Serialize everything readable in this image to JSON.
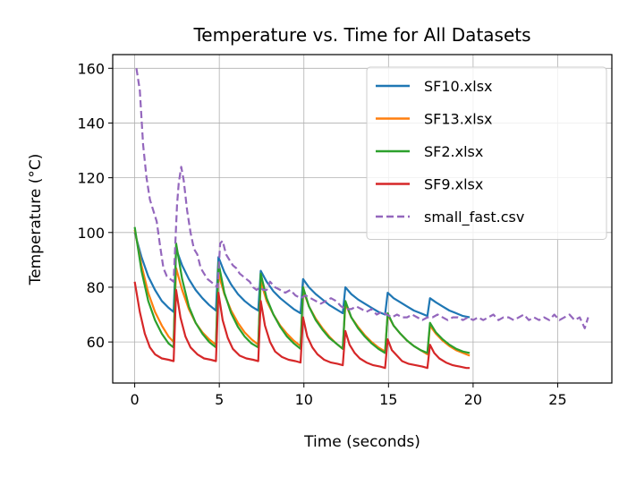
{
  "chart_data": {
    "type": "line",
    "title": "Temperature vs. Time for All Datasets",
    "xlabel": "Time (seconds)",
    "ylabel": "Temperature (°C)",
    "xlim": [
      -1.3,
      28.2
    ],
    "ylim": [
      45,
      165
    ],
    "xticks": [
      0,
      5,
      10,
      15,
      20,
      25
    ],
    "yticks": [
      60,
      80,
      100,
      120,
      140,
      160
    ],
    "grid": true,
    "legend_position": "top-right",
    "series": [
      {
        "name": "SF10.xlsx",
        "color": "#1f77b4",
        "dash": false,
        "x": [
          0,
          0.4,
          0.8,
          1.2,
          1.6,
          2.0,
          2.3,
          2.45,
          2.8,
          3.2,
          3.6,
          4.0,
          4.4,
          4.8,
          4.95,
          5.3,
          5.7,
          6.1,
          6.5,
          6.9,
          7.3,
          7.45,
          7.8,
          8.2,
          8.6,
          9.0,
          9.4,
          9.8,
          9.95,
          10.3,
          10.7,
          11.1,
          11.5,
          11.9,
          12.3,
          12.45,
          12.8,
          13.2,
          13.6,
          14.0,
          14.4,
          14.8,
          14.95,
          15.3,
          15.7,
          16.1,
          16.5,
          16.9,
          17.3,
          17.45,
          17.8,
          18.2,
          18.6,
          19.0,
          19.4,
          19.8
        ],
        "y": [
          100,
          91,
          84,
          79,
          75,
          72.5,
          71,
          94,
          88,
          83,
          79,
          76,
          73.5,
          71.5,
          91,
          85.5,
          81,
          77.5,
          75,
          73,
          71.5,
          86,
          82,
          78.5,
          76,
          74,
          72,
          70.5,
          83,
          80,
          77.5,
          75.5,
          73.5,
          72,
          70.5,
          80,
          77.5,
          75.5,
          74,
          72.5,
          71,
          70,
          78,
          76,
          74.5,
          73,
          71.5,
          70.5,
          69.5,
          76,
          74.5,
          73,
          71.5,
          70.5,
          69.5,
          69
        ]
      },
      {
        "name": "SF13.xlsx",
        "color": "#ff7f0e",
        "dash": false,
        "x": [
          0,
          0.4,
          0.8,
          1.2,
          1.6,
          2.0,
          2.3,
          2.45,
          2.8,
          3.2,
          3.6,
          4.0,
          4.4,
          4.8,
          4.95,
          5.3,
          5.7,
          6.1,
          6.5,
          6.9,
          7.3,
          7.45,
          7.8,
          8.2,
          8.6,
          9.0,
          9.4,
          9.8,
          9.95,
          10.3,
          10.7,
          11.1,
          11.5,
          11.9,
          12.3,
          12.45,
          12.8,
          13.2,
          13.6,
          14.0,
          14.4,
          14.8,
          14.95,
          15.3,
          15.7,
          16.1,
          16.5,
          16.9,
          17.3,
          17.45,
          17.8,
          18.2,
          18.6,
          19.0,
          19.4,
          19.8
        ],
        "y": [
          101,
          88,
          78,
          71,
          66,
          62,
          60,
          87,
          79,
          72,
          67,
          63.5,
          61,
          59,
          85,
          77.5,
          71.5,
          67,
          63.5,
          61,
          59,
          82,
          75,
          70,
          66,
          63,
          60.5,
          58.5,
          79,
          73,
          68.5,
          65,
          62,
          59.5,
          57.5,
          74,
          69,
          65.5,
          62.5,
          60,
          58,
          56.5,
          70,
          66,
          63,
          60.5,
          58.5,
          57,
          55.5,
          66,
          63,
          60.5,
          58.5,
          57,
          56,
          55
        ]
      },
      {
        "name": "SF2.xlsx",
        "color": "#2ca02c",
        "dash": false,
        "x": [
          0,
          0.4,
          0.8,
          1.2,
          1.6,
          2.0,
          2.3,
          2.45,
          2.8,
          3.2,
          3.6,
          4.0,
          4.4,
          4.8,
          4.95,
          5.3,
          5.7,
          6.1,
          6.5,
          6.9,
          7.3,
          7.45,
          7.8,
          8.2,
          8.6,
          9.0,
          9.4,
          9.8,
          9.95,
          10.3,
          10.7,
          11.1,
          11.5,
          11.9,
          12.3,
          12.45,
          12.8,
          13.2,
          13.6,
          14.0,
          14.4,
          14.8,
          14.95,
          15.3,
          15.7,
          16.1,
          16.5,
          16.9,
          17.3,
          17.45,
          17.8,
          18.2,
          18.6,
          19.0,
          19.4,
          19.8
        ],
        "y": [
          102,
          86,
          75,
          68,
          63,
          59.5,
          58,
          96,
          83,
          73,
          67,
          63,
          60,
          58,
          89,
          78,
          70.5,
          65.5,
          62,
          59.5,
          58,
          85,
          76,
          70,
          65.5,
          62,
          59.5,
          57.5,
          80,
          73,
          68,
          64.5,
          61.5,
          59.5,
          57.5,
          75,
          69,
          65,
          62,
          59.5,
          57.5,
          56,
          70.5,
          66,
          63,
          60.5,
          58.5,
          57,
          56,
          67,
          63.5,
          61,
          59,
          57.5,
          56.5,
          56
        ]
      },
      {
        "name": "SF9.xlsx",
        "color": "#d62728",
        "dash": false,
        "x": [
          0,
          0.3,
          0.6,
          0.9,
          1.2,
          1.6,
          2.0,
          2.3,
          2.45,
          2.7,
          3.0,
          3.3,
          3.7,
          4.1,
          4.5,
          4.8,
          4.95,
          5.2,
          5.5,
          5.8,
          6.2,
          6.6,
          7.0,
          7.3,
          7.45,
          7.7,
          8.0,
          8.3,
          8.7,
          9.1,
          9.5,
          9.8,
          9.95,
          10.2,
          10.5,
          10.8,
          11.2,
          11.6,
          12.0,
          12.3,
          12.45,
          12.7,
          13.0,
          13.3,
          13.7,
          14.1,
          14.5,
          14.8,
          14.95,
          15.2,
          15.5,
          15.8,
          16.2,
          16.6,
          17.0,
          17.3,
          17.45,
          17.7,
          18.0,
          18.4,
          18.8,
          19.2,
          19.6,
          19.8
        ],
        "y": [
          82,
          71,
          63,
          58,
          55.5,
          54,
          53.5,
          53,
          79,
          69,
          62,
          58,
          55.5,
          54,
          53.5,
          53,
          78,
          68,
          61.5,
          57.5,
          55,
          54,
          53.5,
          53,
          75,
          66,
          60,
          56.5,
          54.5,
          53.5,
          53,
          52.5,
          69,
          62,
          58,
          55.5,
          53.5,
          52.5,
          52,
          51.5,
          64,
          59,
          56,
          54,
          52.5,
          51.5,
          51,
          50.5,
          61,
          57,
          55,
          53,
          52,
          51.5,
          51,
          50.5,
          59,
          56,
          54,
          52.5,
          51.5,
          51,
          50.5,
          50.5
        ]
      },
      {
        "name": "small_fast.csv",
        "color": "#9467bd",
        "dash": true,
        "x": [
          0.1,
          0.3,
          0.5,
          0.7,
          0.9,
          1.1,
          1.3,
          1.5,
          1.7,
          1.9,
          2.1,
          2.3,
          2.5,
          2.6,
          2.75,
          2.9,
          3.1,
          3.3,
          3.5,
          3.7,
          3.9,
          4.1,
          4.3,
          4.5,
          4.7,
          4.9,
          5.05,
          5.2,
          5.4,
          5.6,
          5.8,
          6.0,
          6.2,
          6.4,
          6.6,
          6.8,
          7.0,
          7.2,
          7.4,
          7.6,
          7.8,
          8.0,
          8.3,
          8.6,
          8.9,
          9.2,
          9.5,
          9.8,
          10.1,
          10.4,
          10.7,
          11.0,
          11.3,
          11.6,
          11.9,
          12.2,
          12.5,
          12.8,
          13.1,
          13.4,
          13.7,
          14.0,
          14.3,
          14.6,
          14.9,
          15.2,
          15.5,
          15.8,
          16.1,
          16.4,
          16.7,
          17.0,
          17.3,
          17.6,
          17.9,
          18.2,
          18.5,
          18.8,
          19.1,
          19.4,
          19.7,
          20.0,
          20.3,
          20.6,
          20.9,
          21.2,
          21.5,
          21.8,
          22.1,
          22.4,
          22.7,
          23.0,
          23.3,
          23.6,
          23.9,
          24.2,
          24.5,
          24.8,
          25.1,
          25.4,
          25.7,
          26.0,
          26.3,
          26.6,
          26.8
        ],
        "y": [
          160,
          152,
          132,
          120,
          112,
          108,
          104,
          95,
          87,
          84,
          83,
          82,
          110,
          118,
          124,
          119,
          108,
          100,
          94,
          92,
          87,
          85,
          83,
          82,
          81,
          80,
          96,
          97,
          92,
          90,
          88,
          87,
          85,
          84,
          83,
          82,
          80,
          79,
          80,
          79,
          79,
          82,
          80,
          79,
          78,
          79,
          77,
          76,
          77,
          76,
          75,
          74,
          75,
          76,
          75,
          73,
          72,
          72,
          73,
          72,
          71,
          72,
          70,
          71,
          70,
          69,
          70,
          69,
          69,
          70,
          69,
          68,
          69,
          69,
          70,
          69,
          68,
          69,
          69,
          68,
          69,
          68,
          69,
          68,
          69,
          70,
          68,
          69,
          69,
          68,
          69,
          70,
          68,
          69,
          68,
          69,
          68,
          70,
          68,
          69,
          70,
          68,
          69,
          65,
          69
        ]
      }
    ]
  }
}
